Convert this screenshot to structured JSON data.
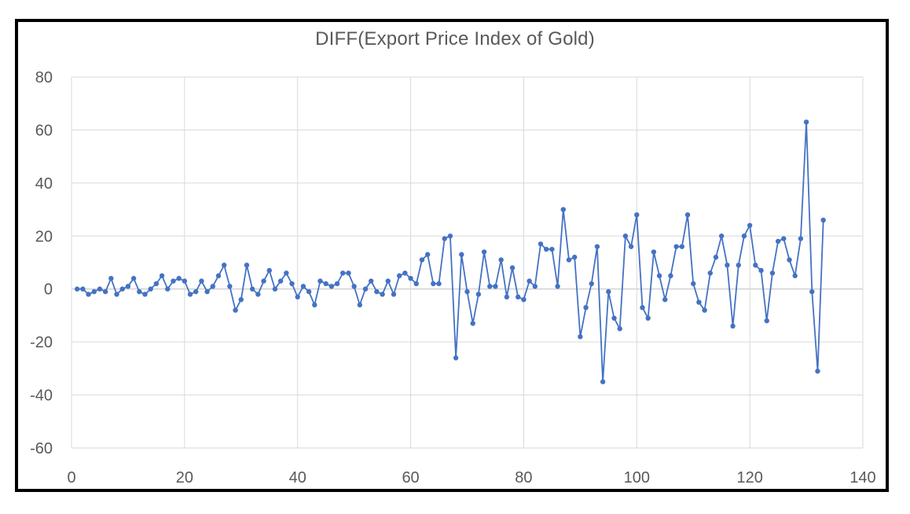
{
  "chart_data": {
    "type": "line",
    "title": "DIFF(Export Price Index of Gold)",
    "xlabel": "",
    "ylabel": "",
    "xlim": [
      0,
      140
    ],
    "ylim": [
      -60,
      80
    ],
    "x_ticks": [
      "0",
      "20",
      "40",
      "60",
      "80",
      "100",
      "120",
      "140"
    ],
    "y_ticks": [
      "80",
      "60",
      "40",
      "20",
      "0",
      "-20",
      "-40",
      "-60"
    ],
    "grid": true,
    "legend": "none",
    "series": [
      {
        "color": "#4472C4",
        "marker": "circle",
        "x": [
          1,
          2,
          3,
          4,
          5,
          6,
          7,
          8,
          9,
          10,
          11,
          12,
          13,
          14,
          15,
          16,
          17,
          18,
          19,
          20,
          21,
          22,
          23,
          24,
          25,
          26,
          27,
          28,
          29,
          30,
          31,
          32,
          33,
          34,
          35,
          36,
          37,
          38,
          39,
          40,
          41,
          42,
          43,
          44,
          45,
          46,
          47,
          48,
          49,
          50,
          51,
          52,
          53,
          54,
          55,
          56,
          57,
          58,
          59,
          60,
          61,
          62,
          63,
          64,
          65,
          66,
          67,
          68,
          69,
          70,
          71,
          72,
          73,
          74,
          75,
          76,
          77,
          78,
          79,
          80,
          81,
          82,
          83,
          84,
          85,
          86,
          87,
          88,
          89,
          90,
          91,
          92,
          93,
          94,
          95,
          96,
          97,
          98,
          99,
          100,
          101,
          102,
          103,
          104,
          105,
          106,
          107,
          108,
          109,
          110,
          111,
          112,
          113,
          114,
          115,
          116,
          117,
          118,
          119,
          120,
          121,
          122,
          123,
          124,
          125,
          126,
          127,
          128,
          129,
          130,
          131,
          132,
          133
        ],
        "y": [
          0,
          0,
          -2,
          -1,
          0,
          -1,
          4,
          -2,
          0,
          1,
          4,
          -1,
          -2,
          0,
          2,
          5,
          0,
          3,
          4,
          3,
          -2,
          -1,
          3,
          -1,
          1,
          5,
          9,
          1,
          -8,
          -4,
          9,
          0,
          -2,
          3,
          7,
          0,
          3,
          6,
          2,
          -3,
          1,
          -1,
          -6,
          3,
          2,
          1,
          2,
          6,
          6,
          1,
          -6,
          0,
          3,
          -1,
          -2,
          3,
          -2,
          5,
          6,
          4,
          2,
          11,
          13,
          2,
          2,
          19,
          20,
          -26,
          13,
          -1,
          -13,
          -2,
          14,
          1,
          1,
          11,
          -3,
          8,
          -3,
          -4,
          3,
          1,
          17,
          15,
          15,
          1,
          30,
          11,
          12,
          -18,
          -7,
          2,
          16,
          -35,
          -1,
          -11,
          -15,
          20,
          16,
          28,
          -7,
          -11,
          14,
          5,
          -4,
          5,
          16,
          16,
          28,
          2,
          -5,
          -8,
          6,
          12,
          20,
          9,
          -14,
          9,
          20,
          24,
          9,
          7,
          -12,
          6,
          18,
          19,
          11,
          5,
          19,
          63,
          -1,
          -31,
          26
        ]
      }
    ]
  }
}
